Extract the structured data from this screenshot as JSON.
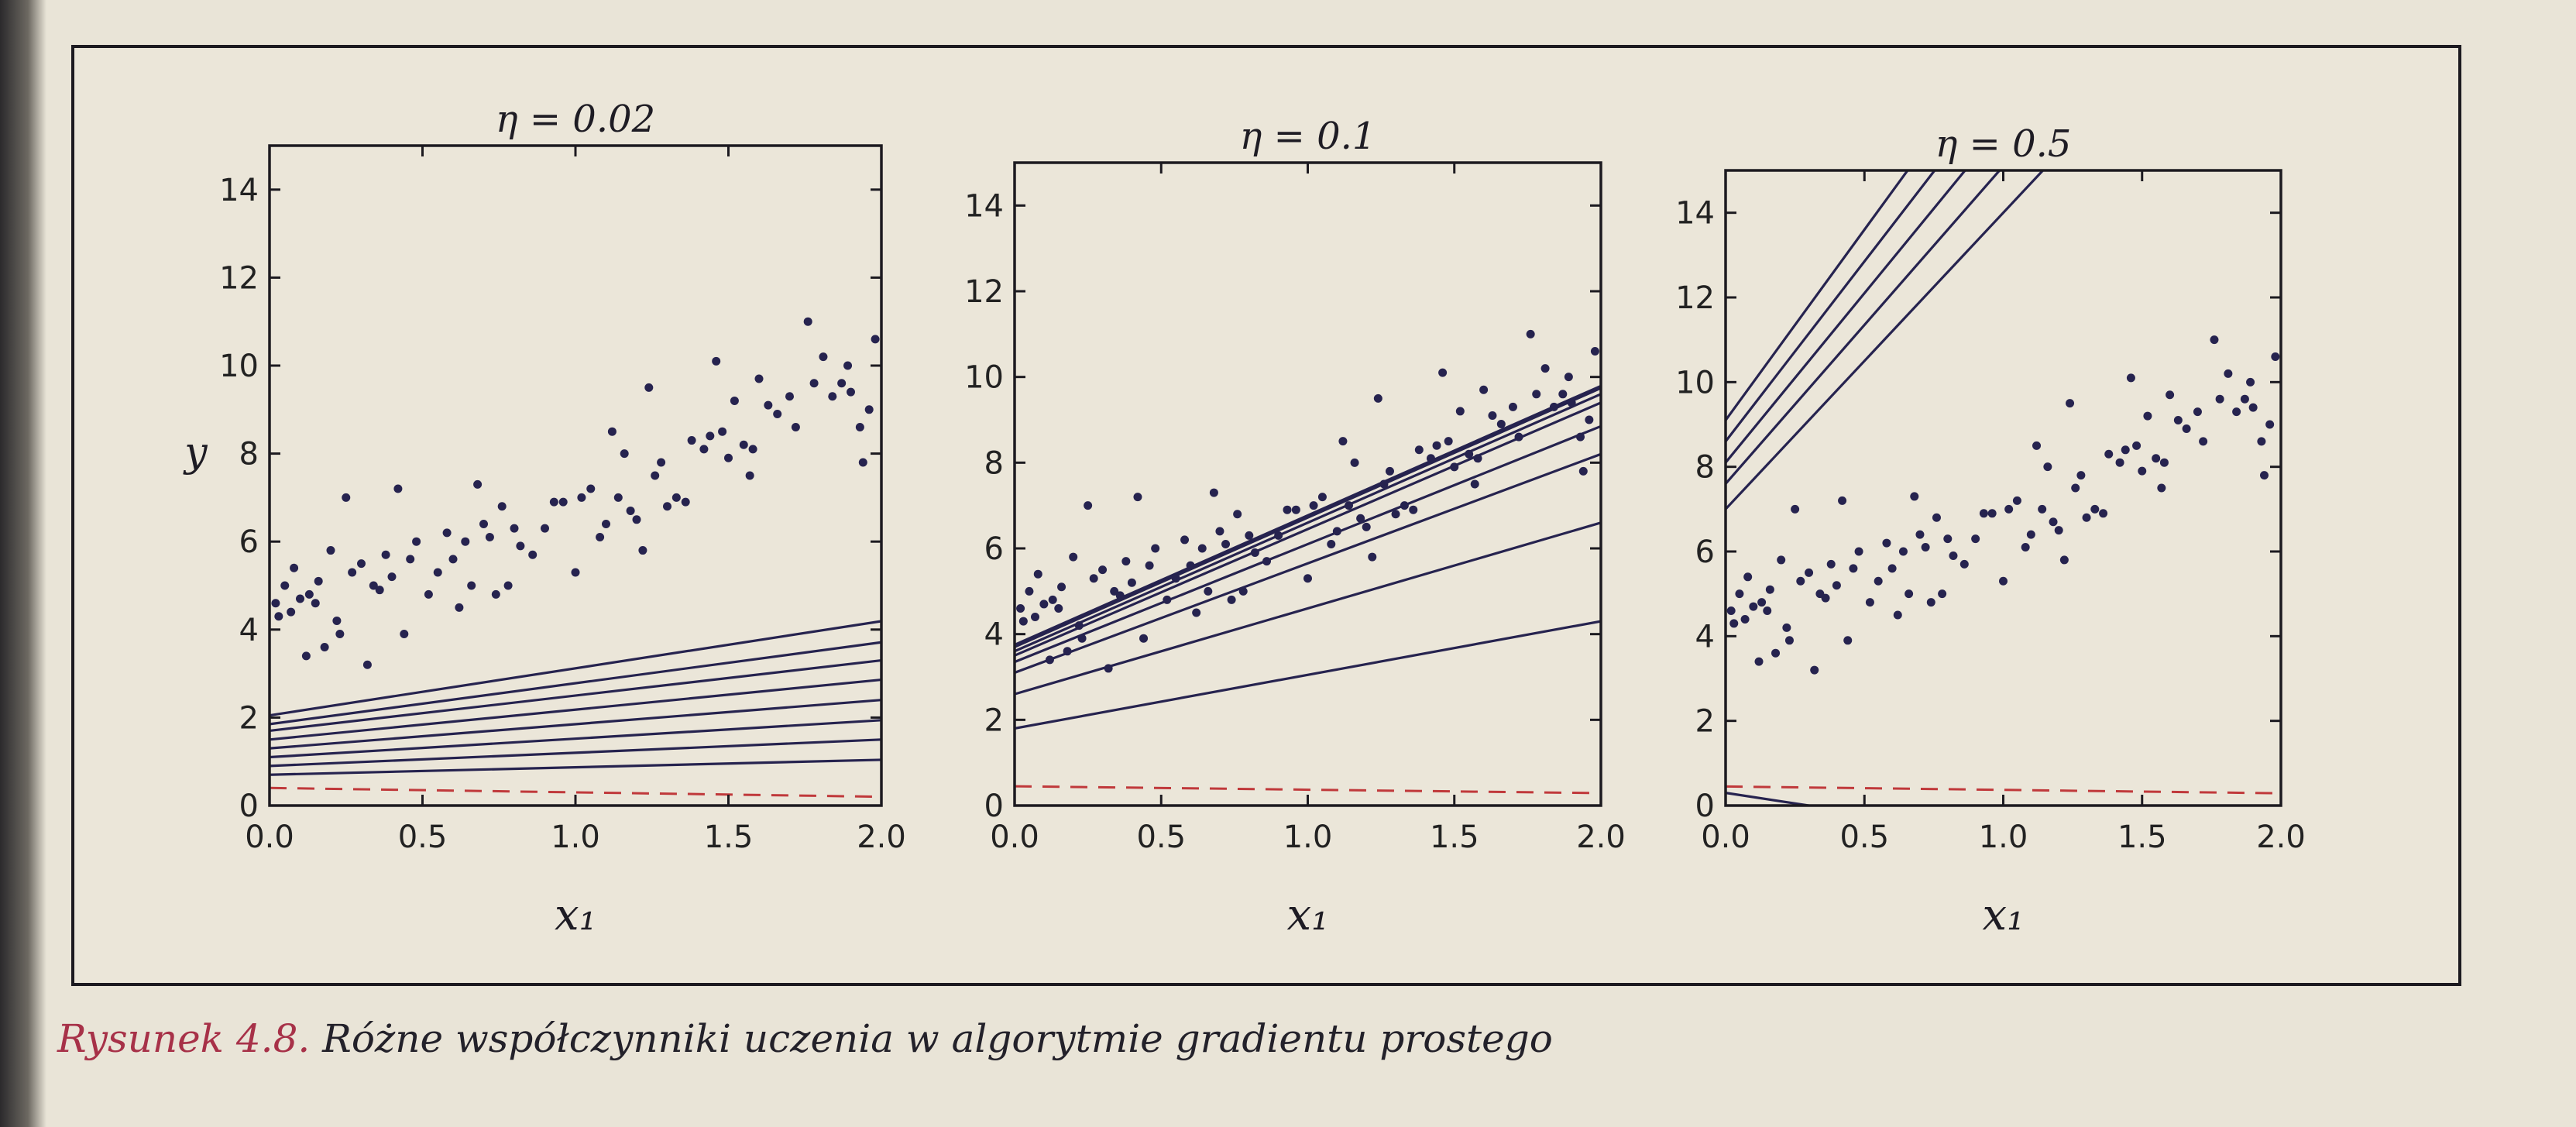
{
  "caption": {
    "label": "Rysunek 4.8.",
    "text": " Różne współczynniki uczenia w algorytmie gradientu prostego"
  },
  "colors": {
    "ink": "#26234f",
    "dashed_line": "#c0393b",
    "axes": "#1c1a20"
  },
  "chart_data": [
    {
      "type": "scatter",
      "title": "η = 0.02",
      "xlabel": "x₁",
      "ylabel": "y",
      "xlim": [
        0,
        2
      ],
      "ylim": [
        0,
        15
      ],
      "xticks": [
        "0.0",
        "0.5",
        "1.0",
        "1.5",
        "2.0"
      ],
      "yticks": [
        "0",
        "2",
        "4",
        "6",
        "8",
        "10",
        "12",
        "14"
      ],
      "prediction_lines": [
        {
          "style": "dashed",
          "intercept": 0.4,
          "slope": -0.1
        },
        {
          "style": "solid",
          "intercept": 0.7,
          "slope": 0.17
        },
        {
          "style": "solid",
          "intercept": 0.9,
          "slope": 0.3
        },
        {
          "style": "solid",
          "intercept": 1.1,
          "slope": 0.42
        },
        {
          "style": "solid",
          "intercept": 1.3,
          "slope": 0.55
        },
        {
          "style": "solid",
          "intercept": 1.5,
          "slope": 0.68
        },
        {
          "style": "solid",
          "intercept": 1.7,
          "slope": 0.8
        },
        {
          "style": "solid",
          "intercept": 1.85,
          "slope": 0.93
        },
        {
          "style": "solid",
          "intercept": 2.05,
          "slope": 1.07
        }
      ]
    },
    {
      "type": "scatter",
      "title": "η = 0.1",
      "xlabel": "x₁",
      "ylabel": "",
      "xlim": [
        0,
        2
      ],
      "ylim": [
        0,
        15
      ],
      "xticks": [
        "0.0",
        "0.5",
        "1.0",
        "1.5",
        "2.0"
      ],
      "yticks": [
        "0",
        "2",
        "4",
        "6",
        "8",
        "10",
        "12",
        "14"
      ],
      "prediction_lines": [
        {
          "style": "dashed",
          "intercept": 0.45,
          "slope": -0.08
        },
        {
          "style": "solid",
          "intercept": 1.8,
          "slope": 1.25
        },
        {
          "style": "solid",
          "intercept": 2.6,
          "slope": 2.0
        },
        {
          "style": "solid",
          "intercept": 3.1,
          "slope": 2.55
        },
        {
          "style": "solid",
          "intercept": 3.35,
          "slope": 2.75
        },
        {
          "style": "solid",
          "intercept": 3.5,
          "slope": 2.95
        },
        {
          "style": "solid",
          "intercept": 3.6,
          "slope": 3.0
        },
        {
          "style": "solid",
          "intercept": 3.7,
          "slope": 3.02
        },
        {
          "style": "solid",
          "intercept": 3.75,
          "slope": 3.02
        }
      ]
    },
    {
      "type": "scatter",
      "title": "η = 0.5",
      "xlabel": "x₁",
      "ylabel": "",
      "xlim": [
        0,
        2
      ],
      "ylim": [
        0,
        15
      ],
      "xticks": [
        "0.0",
        "0.5",
        "1.0",
        "1.5",
        "2.0"
      ],
      "yticks": [
        "0",
        "2",
        "4",
        "6",
        "8",
        "10",
        "12",
        "14"
      ],
      "prediction_lines": [
        {
          "style": "dashed",
          "intercept": 0.45,
          "slope": -0.08
        },
        {
          "style": "solid",
          "intercept": 0.3,
          "slope": -1.0
        },
        {
          "style": "solid",
          "intercept": 7.0,
          "slope": 7.0
        },
        {
          "style": "solid",
          "intercept": 7.6,
          "slope": 7.5
        },
        {
          "style": "solid",
          "intercept": 8.1,
          "slope": 8.0
        },
        {
          "style": "solid",
          "intercept": 8.6,
          "slope": 8.5
        },
        {
          "style": "solid",
          "intercept": 9.1,
          "slope": 9.0
        }
      ]
    }
  ],
  "scatter_points": [
    [
      0.02,
      4.6
    ],
    [
      0.03,
      4.3
    ],
    [
      0.05,
      5.0
    ],
    [
      0.07,
      4.4
    ],
    [
      0.08,
      5.4
    ],
    [
      0.1,
      4.7
    ],
    [
      0.12,
      3.4
    ],
    [
      0.13,
      4.8
    ],
    [
      0.15,
      4.6
    ],
    [
      0.16,
      5.1
    ],
    [
      0.18,
      3.6
    ],
    [
      0.2,
      5.8
    ],
    [
      0.22,
      4.2
    ],
    [
      0.23,
      3.9
    ],
    [
      0.25,
      7.0
    ],
    [
      0.27,
      5.3
    ],
    [
      0.3,
      5.5
    ],
    [
      0.32,
      3.2
    ],
    [
      0.34,
      5.0
    ],
    [
      0.36,
      4.9
    ],
    [
      0.38,
      5.7
    ],
    [
      0.4,
      5.2
    ],
    [
      0.42,
      7.2
    ],
    [
      0.44,
      3.9
    ],
    [
      0.46,
      5.6
    ],
    [
      0.48,
      6.0
    ],
    [
      0.52,
      4.8
    ],
    [
      0.55,
      5.3
    ],
    [
      0.58,
      6.2
    ],
    [
      0.6,
      5.6
    ],
    [
      0.62,
      4.5
    ],
    [
      0.64,
      6.0
    ],
    [
      0.66,
      5.0
    ],
    [
      0.68,
      7.3
    ],
    [
      0.7,
      6.4
    ],
    [
      0.72,
      6.1
    ],
    [
      0.74,
      4.8
    ],
    [
      0.76,
      6.8
    ],
    [
      0.78,
      5.0
    ],
    [
      0.8,
      6.3
    ],
    [
      0.82,
      5.9
    ],
    [
      0.86,
      5.7
    ],
    [
      0.9,
      6.3
    ],
    [
      0.93,
      6.9
    ],
    [
      0.96,
      6.9
    ],
    [
      1.0,
      5.3
    ],
    [
      1.02,
      7.0
    ],
    [
      1.05,
      7.2
    ],
    [
      1.08,
      6.1
    ],
    [
      1.1,
      6.4
    ],
    [
      1.12,
      8.5
    ],
    [
      1.14,
      7.0
    ],
    [
      1.16,
      8.0
    ],
    [
      1.18,
      6.7
    ],
    [
      1.2,
      6.5
    ],
    [
      1.22,
      5.8
    ],
    [
      1.24,
      9.5
    ],
    [
      1.26,
      7.5
    ],
    [
      1.28,
      7.8
    ],
    [
      1.3,
      6.8
    ],
    [
      1.33,
      7.0
    ],
    [
      1.36,
      6.9
    ],
    [
      1.38,
      8.3
    ],
    [
      1.42,
      8.1
    ],
    [
      1.44,
      8.4
    ],
    [
      1.46,
      10.1
    ],
    [
      1.48,
      8.5
    ],
    [
      1.5,
      7.9
    ],
    [
      1.52,
      9.2
    ],
    [
      1.55,
      8.2
    ],
    [
      1.57,
      7.5
    ],
    [
      1.58,
      8.1
    ],
    [
      1.6,
      9.7
    ],
    [
      1.63,
      9.1
    ],
    [
      1.66,
      8.9
    ],
    [
      1.7,
      9.3
    ],
    [
      1.72,
      8.6
    ],
    [
      1.76,
      11.0
    ],
    [
      1.78,
      9.6
    ],
    [
      1.81,
      10.2
    ],
    [
      1.84,
      9.3
    ],
    [
      1.87,
      9.6
    ],
    [
      1.89,
      10.0
    ],
    [
      1.9,
      9.4
    ],
    [
      1.93,
      8.6
    ],
    [
      1.94,
      7.8
    ],
    [
      1.96,
      9.0
    ],
    [
      1.98,
      10.6
    ]
  ]
}
